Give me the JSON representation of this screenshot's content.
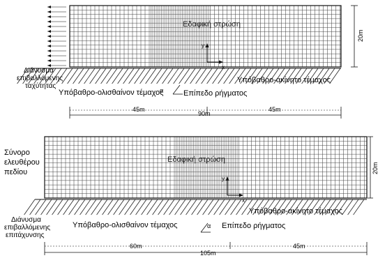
{
  "top_panel": {
    "soil_layer": "Εδαφική στρώση",
    "input_vector": [
      "Διάνυσμα",
      "επιβαλλόμενης",
      "ταχύτητας"
    ],
    "sliding_base": "Υπόβαθρο-ολισθαίνον τέμαχος",
    "fixed_base": "Υπόβαθρο-ακίνητο τέμαχος",
    "fault_plane": "Επίπεδο ρήγματος",
    "angle_symbol": "α",
    "axis_y": "y",
    "axis_x": "x",
    "height_dim": "20m",
    "left_dim": "45m",
    "total_dim": "90m",
    "right_dim": "45m"
  },
  "bottom_panel": {
    "soil_layer": "Εδαφική στρώση",
    "free_field": [
      "Σύνορο",
      "ελευθέρου",
      "πεδίου"
    ],
    "input_vector": [
      "Διάνυσμα",
      "επιβαλλόμενης",
      "επιτάχυνσης"
    ],
    "sliding_base": "Υπόβαθρο-ολισθαίνον τέμαχος",
    "fixed_base": "Υπόβαθρο-ακίνητο τέμαχος",
    "fault_plane": "Επίπεδο ρήγματος",
    "angle_symbol": "α",
    "axis_y": "y",
    "axis_x": "x",
    "height_dim": "20m",
    "left_dim": "60m",
    "total_dim": "105m",
    "right_dim": "45m"
  },
  "colors": {
    "ink": "#111111",
    "mesh": "#444444",
    "mesh_dense": "#222222"
  }
}
